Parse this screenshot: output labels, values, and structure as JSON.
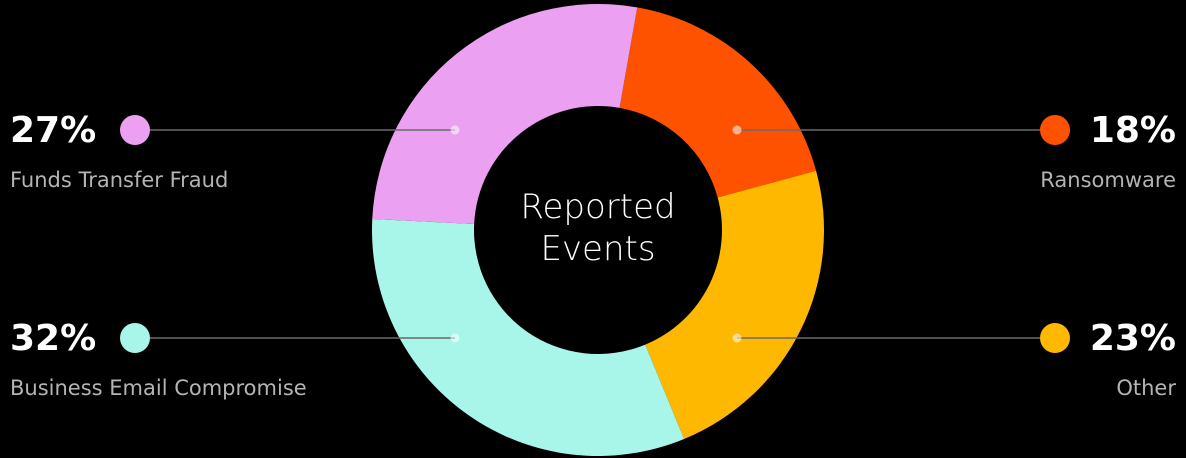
{
  "chart_data": {
    "type": "pie",
    "center_label": "Reported Events",
    "categories": [
      "Ransomware",
      "Other",
      "Business Email Compromise",
      "Funds Transfer Fraud"
    ],
    "values": [
      18,
      23,
      32,
      27
    ],
    "value_labels": [
      "18%",
      "23%",
      "32%",
      "27%"
    ],
    "colors": [
      "#ff5200",
      "#ffb800",
      "#a8f5e9",
      "#eba0f2"
    ]
  }
}
